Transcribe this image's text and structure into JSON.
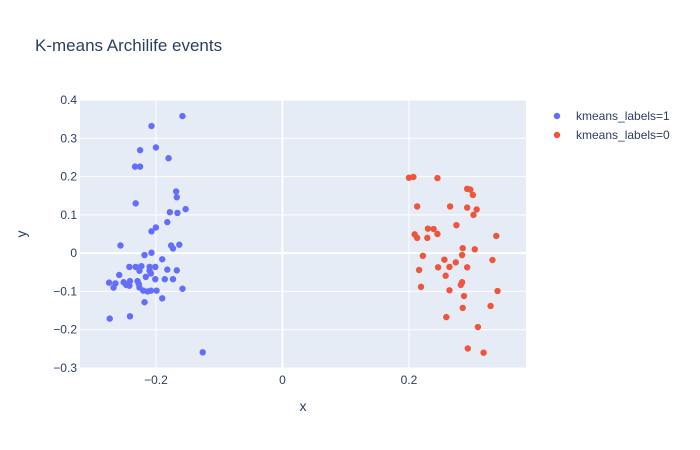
{
  "chart_data": {
    "type": "scatter",
    "title": "K-means Archilife events",
    "xlabel": "x",
    "ylabel": "y",
    "xlim": [
      -0.32,
      0.385
    ],
    "ylim": [
      -0.3,
      0.4
    ],
    "xticks": [
      -0.2,
      0,
      0.2
    ],
    "xtick_labels": [
      "−0.2",
      "0",
      "0.2"
    ],
    "yticks": [
      -0.3,
      -0.2,
      -0.1,
      0,
      0.1,
      0.2,
      0.3,
      0.4
    ],
    "ytick_labels": [
      "−0.3",
      "−0.2",
      "−0.1",
      "0",
      "0.1",
      "0.2",
      "0.3",
      "0.4"
    ],
    "grid": true,
    "legend_position": "top-right outside",
    "series": [
      {
        "name": "kmeans_labels=1",
        "color": "#636efa",
        "points": [
          [
            -0.207,
            0.332
          ],
          [
            -0.158,
            0.358
          ],
          [
            -0.2,
            0.276
          ],
          [
            -0.225,
            0.269
          ],
          [
            -0.18,
            0.248
          ],
          [
            -0.233,
            0.226
          ],
          [
            -0.225,
            0.226
          ],
          [
            -0.168,
            0.161
          ],
          [
            -0.167,
            0.146
          ],
          [
            -0.232,
            0.13
          ],
          [
            -0.153,
            0.115
          ],
          [
            -0.178,
            0.107
          ],
          [
            -0.166,
            0.105
          ],
          [
            -0.182,
            0.081
          ],
          [
            -0.2,
            0.067
          ],
          [
            -0.207,
            0.057
          ],
          [
            -0.256,
            0.02
          ],
          [
            -0.176,
            0.02
          ],
          [
            -0.163,
            0.022
          ],
          [
            -0.173,
            0.012
          ],
          [
            -0.207,
            0.001
          ],
          [
            -0.218,
            -0.005
          ],
          [
            -0.19,
            -0.016
          ],
          [
            -0.223,
            -0.034
          ],
          [
            -0.21,
            -0.036
          ],
          [
            -0.201,
            -0.036
          ],
          [
            -0.232,
            -0.036
          ],
          [
            -0.242,
            -0.036
          ],
          [
            -0.182,
            -0.043
          ],
          [
            -0.167,
            -0.045
          ],
          [
            -0.21,
            -0.046
          ],
          [
            -0.226,
            -0.046
          ],
          [
            -0.208,
            -0.053
          ],
          [
            -0.258,
            -0.057
          ],
          [
            -0.216,
            -0.062
          ],
          [
            -0.201,
            -0.068
          ],
          [
            -0.186,
            -0.068
          ],
          [
            -0.173,
            -0.068
          ],
          [
            -0.241,
            -0.073
          ],
          [
            -0.229,
            -0.073
          ],
          [
            -0.251,
            -0.076
          ],
          [
            -0.274,
            -0.077
          ],
          [
            -0.264,
            -0.079
          ],
          [
            -0.227,
            -0.081
          ],
          [
            -0.247,
            -0.083
          ],
          [
            -0.242,
            -0.085
          ],
          [
            -0.267,
            -0.09
          ],
          [
            -0.226,
            -0.09
          ],
          [
            -0.158,
            -0.093
          ],
          [
            -0.22,
            -0.098
          ],
          [
            -0.208,
            -0.098
          ],
          [
            -0.199,
            -0.098
          ],
          [
            -0.213,
            -0.1
          ],
          [
            -0.19,
            -0.118
          ],
          [
            -0.218,
            -0.128
          ],
          [
            -0.241,
            -0.165
          ],
          [
            -0.273,
            -0.171
          ],
          [
            -0.126,
            -0.259
          ]
        ]
      },
      {
        "name": "kmeans_labels=0",
        "color": "#ef553b",
        "points": [
          [
            0.2,
            0.197
          ],
          [
            0.207,
            0.199
          ],
          [
            0.245,
            0.196
          ],
          [
            0.292,
            0.168
          ],
          [
            0.297,
            0.166
          ],
          [
            0.301,
            0.152
          ],
          [
            0.213,
            0.122
          ],
          [
            0.265,
            0.122
          ],
          [
            0.292,
            0.119
          ],
          [
            0.307,
            0.114
          ],
          [
            0.302,
            0.1
          ],
          [
            0.275,
            0.073
          ],
          [
            0.23,
            0.064
          ],
          [
            0.239,
            0.063
          ],
          [
            0.209,
            0.049
          ],
          [
            0.245,
            0.05
          ],
          [
            0.213,
            0.04
          ],
          [
            0.229,
            0.04
          ],
          [
            0.338,
            0.045
          ],
          [
            0.285,
            0.013
          ],
          [
            0.304,
            0.01
          ],
          [
            0.222,
            -0.007
          ],
          [
            0.284,
            -0.005
          ],
          [
            0.256,
            -0.017
          ],
          [
            0.332,
            -0.018
          ],
          [
            0.274,
            -0.024
          ],
          [
            0.264,
            -0.036
          ],
          [
            0.246,
            -0.037
          ],
          [
            0.292,
            -0.037
          ],
          [
            0.216,
            -0.044
          ],
          [
            0.258,
            -0.059
          ],
          [
            0.284,
            -0.076
          ],
          [
            0.282,
            -0.083
          ],
          [
            0.219,
            -0.088
          ],
          [
            0.264,
            -0.097
          ],
          [
            0.34,
            -0.099
          ],
          [
            0.287,
            -0.112
          ],
          [
            0.329,
            -0.138
          ],
          [
            0.285,
            -0.143
          ],
          [
            0.259,
            -0.167
          ],
          [
            0.309,
            -0.193
          ],
          [
            0.293,
            -0.249
          ],
          [
            0.318,
            -0.26
          ]
        ]
      }
    ]
  }
}
